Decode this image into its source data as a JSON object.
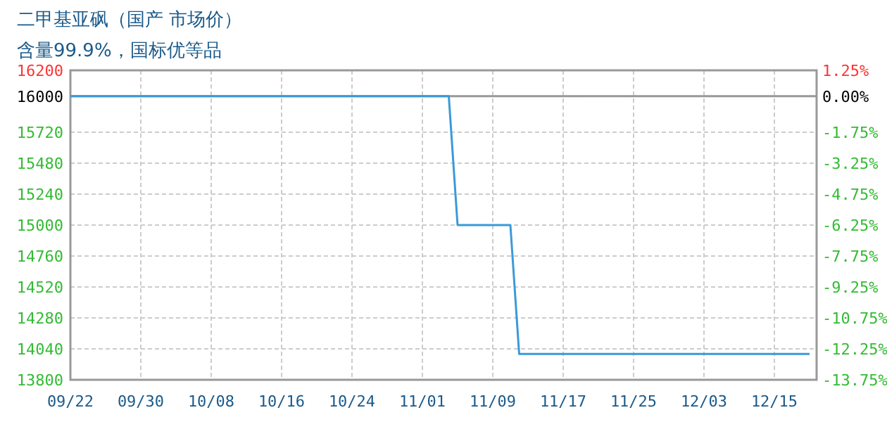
{
  "chart_data": {
    "type": "line",
    "title": "二甲基亚砜（国产 市场价）",
    "subtitle": "含量99.9%，国标优等品",
    "categories": [
      "09/22",
      null,
      null,
      null,
      null,
      null,
      null,
      null,
      "09/30",
      null,
      null,
      null,
      null,
      null,
      null,
      null,
      "10/08",
      null,
      null,
      null,
      null,
      null,
      null,
      null,
      "10/16",
      null,
      null,
      null,
      null,
      null,
      null,
      null,
      "10/24",
      null,
      null,
      null,
      null,
      null,
      null,
      null,
      "11/01",
      null,
      null,
      null,
      null,
      null,
      null,
      null,
      "11/09",
      null,
      null,
      null,
      null,
      null,
      null,
      null,
      "11/17",
      null,
      null,
      null,
      null,
      null,
      null,
      null,
      "11/25",
      null,
      null,
      null,
      null,
      null,
      null,
      null,
      "12/03",
      null,
      null,
      null,
      null,
      null,
      null,
      null,
      "12/15",
      null,
      null,
      null,
      null
    ],
    "series": [
      {
        "color": "#3a9ad9",
        "values": [
          16000,
          16000,
          16000,
          16000,
          16000,
          16000,
          16000,
          16000,
          16000,
          16000,
          16000,
          16000,
          16000,
          16000,
          16000,
          16000,
          16000,
          16000,
          16000,
          16000,
          16000,
          16000,
          16000,
          16000,
          16000,
          16000,
          16000,
          16000,
          16000,
          16000,
          16000,
          16000,
          16000,
          16000,
          16000,
          16000,
          16000,
          16000,
          16000,
          16000,
          16000,
          16000,
          16000,
          16000,
          15000,
          15000,
          15000,
          15000,
          15000,
          15000,
          15000,
          14000,
          14000,
          14000,
          14000,
          14000,
          14000,
          14000,
          14000,
          14000,
          14000,
          14000,
          14000,
          14000,
          14000,
          14000,
          14000,
          14000,
          14000,
          14000,
          14000,
          14000,
          14000,
          14000,
          14000,
          14000,
          14000,
          14000,
          14000,
          14000,
          14000,
          14000,
          14000,
          14000,
          14000
        ]
      }
    ],
    "ylim": [
      13800,
      16200
    ],
    "yticks": [
      16200,
      16000,
      15720,
      15480,
      15240,
      15000,
      14760,
      14520,
      14280,
      14040,
      13800
    ],
    "y2lim": [
      -13.75,
      1.25
    ],
    "y2ticks": [
      {
        "value": 1.25,
        "label": "1.25%"
      },
      {
        "value": 0,
        "label": "0.00%"
      },
      {
        "value": -1.75,
        "label": "-1.75%"
      },
      {
        "value": -3.25,
        "label": "-3.25%"
      },
      {
        "value": -4.75,
        "label": "-4.75%"
      },
      {
        "value": -6.25,
        "label": "-6.25%"
      },
      {
        "value": -7.75,
        "label": "-7.75%"
      },
      {
        "value": -9.25,
        "label": "-9.25%"
      },
      {
        "value": -10.75,
        "label": "-10.75%"
      },
      {
        "value": -12.25,
        "label": "-12.25%"
      },
      {
        "value": -13.75,
        "label": "-13.75%"
      }
    ],
    "ref_lines": [
      {
        "axis": "y",
        "value": 16000,
        "color": "#999999"
      }
    ],
    "grid": true,
    "line_style": "solid",
    "marker": "none"
  }
}
